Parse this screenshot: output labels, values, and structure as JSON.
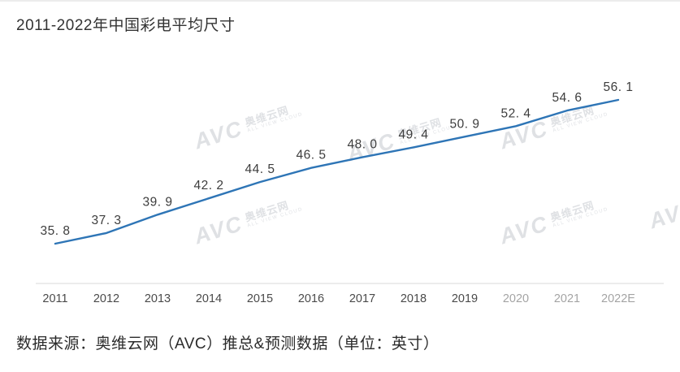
{
  "page": {
    "title": "2011-2022年中国彩电平均尺寸",
    "source_note": "数据来源：奥维云网（AVC）推总&预测数据（单位：英寸）"
  },
  "watermark": {
    "logo": "AVC",
    "name": "奥维云网",
    "subtext": "ALL VIEW CLOUD",
    "color": "#b9bdc5"
  },
  "chart_data": {
    "type": "line",
    "title": "2011-2022年中国彩电平均尺寸",
    "categories": [
      "2011",
      "2012",
      "2013",
      "2014",
      "2015",
      "2016",
      "2017",
      "2018",
      "2019",
      "2020",
      "2021",
      "2022E"
    ],
    "values": [
      35.8,
      37.3,
      39.9,
      42.2,
      44.5,
      46.5,
      48.0,
      49.4,
      50.9,
      52.4,
      54.6,
      56.1
    ],
    "value_labels": [
      "35. 8",
      "37. 3",
      "39. 9",
      "42. 2",
      "44. 5",
      "46. 5",
      "48. 0",
      "49. 4",
      "50. 9",
      "52. 4",
      "54. 6",
      "56. 1"
    ],
    "xlabel": "",
    "ylabel": "",
    "unit": "英寸",
    "ylim": [
      30,
      60
    ],
    "grid": false,
    "legend": false,
    "line_color": "#2e75b6",
    "axis_line_color": "#d9d9d9",
    "label_color": "#3d3d3d",
    "tick_color": "#4a4a4a"
  }
}
